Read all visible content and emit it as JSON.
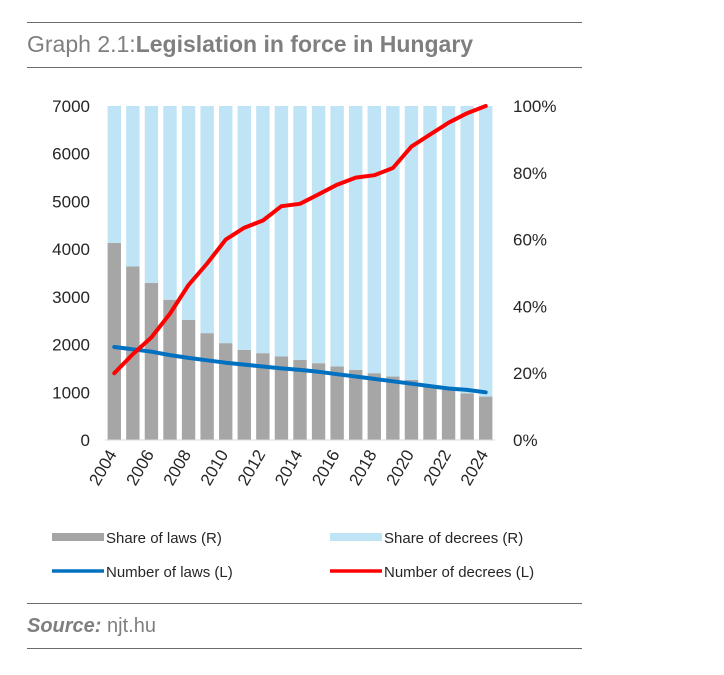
{
  "title": {
    "prefix": "Graph 2.1:",
    "main": "Legislation in force in Hungary"
  },
  "source": {
    "label": "Source:",
    "value": "njt.hu"
  },
  "chart_data": {
    "type": "bar",
    "title": "Legislation in force in Hungary",
    "years": [
      2004,
      2005,
      2006,
      2007,
      2008,
      2009,
      2010,
      2011,
      2012,
      2013,
      2014,
      2015,
      2016,
      2017,
      2018,
      2019,
      2020,
      2021,
      2022,
      2023,
      2024
    ],
    "x_tick_labels": [
      "2004",
      "2006",
      "2008",
      "2010",
      "2012",
      "2014",
      "2016",
      "2018",
      "2020",
      "2022",
      "2024"
    ],
    "y_left": {
      "ticks": [
        "0",
        "1000",
        "2000",
        "3000",
        "4000",
        "5000",
        "6000",
        "7000"
      ],
      "min": 0,
      "max": 7000
    },
    "y_right": {
      "ticks": [
        "0%",
        "20%",
        "40%",
        "60%",
        "80%",
        "100%"
      ],
      "min": 0,
      "max": 100
    },
    "series": [
      {
        "name": "Share of laws (R)",
        "kind": "stacked-bar",
        "axis": "right",
        "color": "#a6a6a6",
        "values": [
          59,
          52,
          47,
          42,
          36,
          32,
          29,
          27,
          26,
          25,
          24,
          23,
          22,
          21,
          20,
          19,
          18,
          16,
          15,
          14,
          13
        ]
      },
      {
        "name": "Share of decrees (R)",
        "kind": "stacked-bar",
        "axis": "right",
        "color": "#bfe4f5",
        "values": [
          41,
          48,
          53,
          58,
          64,
          68,
          71,
          73,
          74,
          75,
          76,
          77,
          78,
          79,
          80,
          81,
          82,
          84,
          85,
          86,
          87
        ]
      },
      {
        "name": "Number of laws (L)",
        "kind": "line",
        "axis": "left",
        "color": "#0070c0",
        "values": [
          1950,
          1900,
          1850,
          1780,
          1720,
          1670,
          1620,
          1580,
          1540,
          1500,
          1470,
          1430,
          1380,
          1330,
          1280,
          1230,
          1180,
          1130,
          1080,
          1050,
          1000
        ]
      },
      {
        "name": "Number of decrees (L)",
        "kind": "line",
        "axis": "left",
        "color": "#ff0000",
        "values": [
          1400,
          1800,
          2150,
          2650,
          3250,
          3700,
          4200,
          4450,
          4600,
          4900,
          4950,
          5150,
          5350,
          5500,
          5550,
          5700,
          6150,
          6400,
          6650,
          6850,
          7000
        ]
      }
    ],
    "legend": "bottom"
  }
}
